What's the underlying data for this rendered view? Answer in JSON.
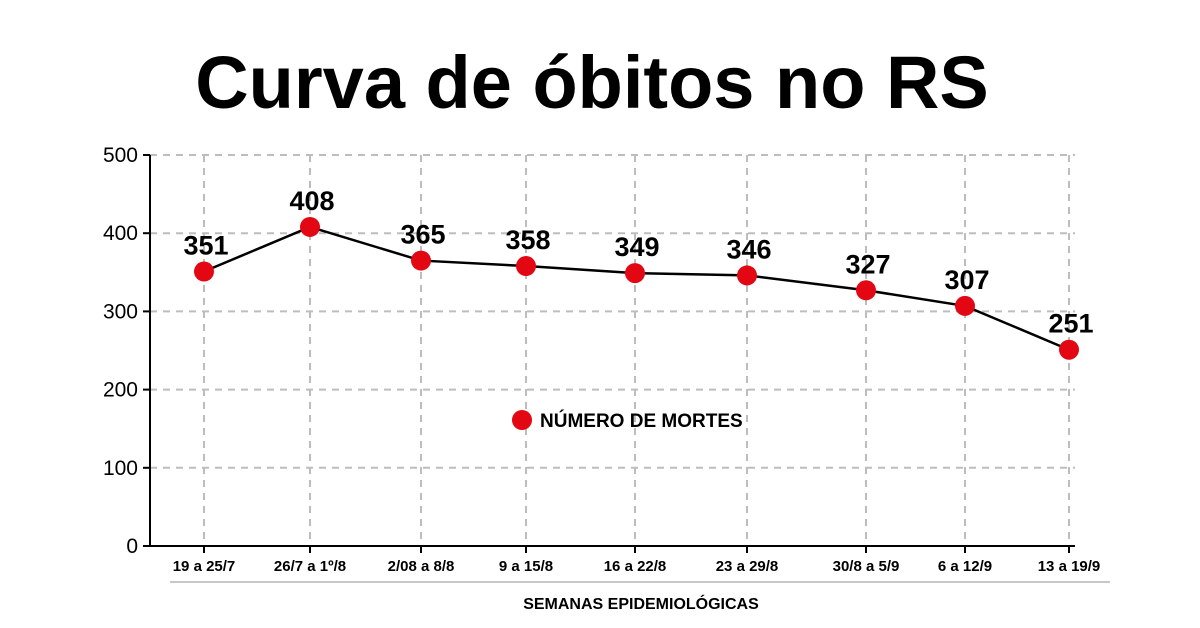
{
  "chart_data": {
    "type": "line",
    "title": "Curva de óbitos no RS",
    "xlabel": "SEMANAS EPIDEMIOLÓGICAS",
    "ylabel": "",
    "ylim": [
      0,
      500
    ],
    "yticks": [
      0,
      100,
      200,
      300,
      400,
      500
    ],
    "grid": true,
    "legend_position": "center",
    "categories": [
      "19 a 25/7",
      "26/7 a 1º/8",
      "2/08 a 8/8",
      "9 a 15/8",
      "16 a 22/8",
      "23 a 29/8",
      "30/8 a 5/9",
      "6 a 12/9",
      "13 a 19/9"
    ],
    "series": [
      {
        "name": "NÚMERO DE MORTES",
        "color": "#e30613",
        "values": [
          351,
          408,
          365,
          358,
          349,
          346,
          327,
          307,
          251
        ]
      }
    ]
  }
}
